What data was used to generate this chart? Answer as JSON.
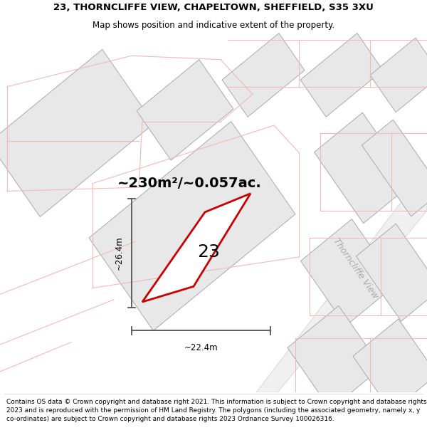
{
  "title_line1": "23, THORNCLIFFE VIEW, CHAPELTOWN, SHEFFIELD, S35 3XU",
  "title_line2": "Map shows position and indicative extent of the property.",
  "area_text": "~230m²/~0.057ac.",
  "label_23": "23",
  "dim_h": "~26.4m",
  "dim_w": "~22.4m",
  "street_label": "Thorncliffe View",
  "footer_text": "Contains OS data © Crown copyright and database right 2021. This information is subject to Crown copyright and database rights 2023 and is reproduced with the permission of HM Land Registry. The polygons (including the associated geometry, namely x, y co-ordinates) are subject to Crown copyright and database rights 2023 Ordnance Survey 100026316.",
  "bg_color": "#ffffff",
  "block_fill": "#e8e8e8",
  "block_edge": "#aaaaaa",
  "pink": "#f5b8b8",
  "plot_color": "#cc0000",
  "dim_color": "#555555",
  "street_color": "#aaaaaa",
  "title_fontsize": 9.5,
  "subtitle_fontsize": 8.5,
  "area_fontsize": 14,
  "label_fontsize": 18,
  "footer_fontsize": 6.5,
  "street_fontsize": 9,
  "dim_fontsize": 8.5
}
